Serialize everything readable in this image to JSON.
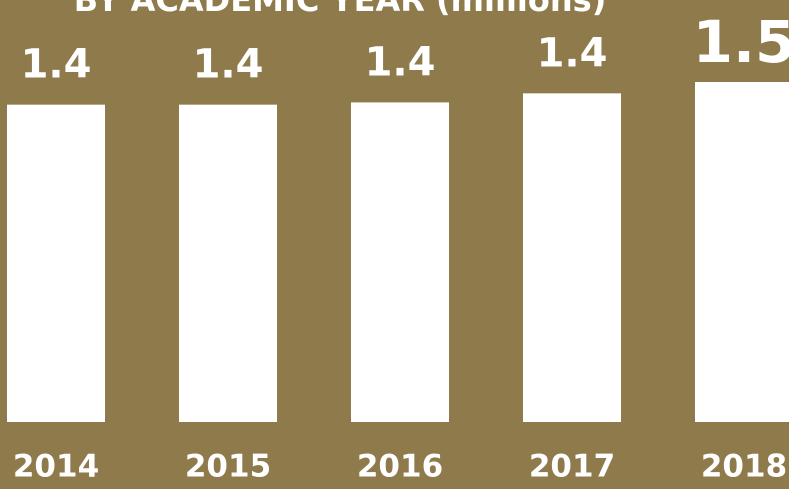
{
  "chart_data": {
    "type": "bar",
    "title": "BY ACADEMIC YEAR (millions)",
    "categories": [
      "2014",
      "2015",
      "2016",
      "2017",
      "2018"
    ],
    "values": [
      1.4,
      1.4,
      1.41,
      1.45,
      1.5
    ],
    "value_labels": [
      "1.4",
      "1.4",
      "1.4",
      "1.4",
      "1.5"
    ],
    "color": "#ffffff",
    "background": "#8f7a4b",
    "ylim": [
      0,
      1.5
    ]
  }
}
